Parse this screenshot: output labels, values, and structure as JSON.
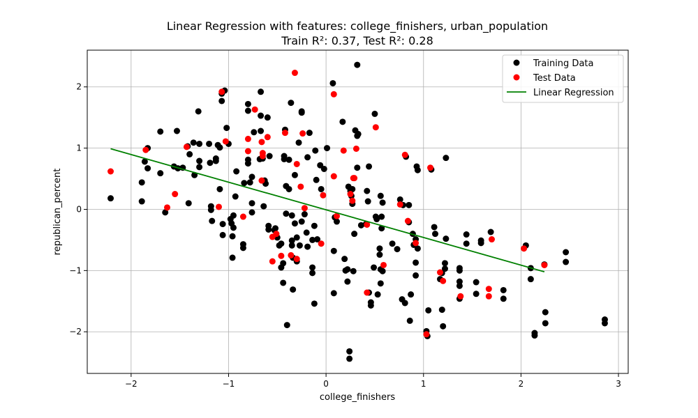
{
  "chart_data": {
    "type": "scatter",
    "title": "Linear Regression with features: college_finishers, urban_population",
    "subtitle": "Train R²: 0.37, Test R²: 0.28",
    "xlabel": "college_finishers",
    "ylabel": "republican_percent",
    "xlim": [
      -2.45,
      3.1
    ],
    "ylim": [
      -2.68,
      2.6
    ],
    "xticks": [
      -2,
      -1,
      0,
      1,
      2,
      3
    ],
    "yticks": [
      -2,
      -1,
      0,
      1,
      2
    ],
    "xtick_labels": [
      "−2",
      "−1",
      "0",
      "1",
      "2",
      "3"
    ],
    "ytick_labels": [
      "−2",
      "−1",
      "0",
      "1",
      "2"
    ],
    "grid": true,
    "legend_position": "top-right",
    "colors": {
      "training": "#000000",
      "test": "#ff0000",
      "line": "#008000",
      "grid": "#b0b0b0"
    },
    "series": [
      {
        "name": "Training Data",
        "kind": "scatter",
        "points": [
          [
            -2.21,
            0.18
          ],
          [
            -1.89,
            0.44
          ],
          [
            -1.89,
            0.13
          ],
          [
            -1.86,
            0.78
          ],
          [
            -1.83,
            0.67
          ],
          [
            -1.83,
            1.0
          ],
          [
            -1.7,
            1.27
          ],
          [
            -1.7,
            0.59
          ],
          [
            -1.65,
            -0.05
          ],
          [
            -1.56,
            0.7
          ],
          [
            -1.53,
            1.28
          ],
          [
            -1.52,
            0.67
          ],
          [
            -1.47,
            0.68
          ],
          [
            -1.42,
            1.03
          ],
          [
            -1.41,
            0.1
          ],
          [
            -1.4,
            0.9
          ],
          [
            -1.36,
            1.09
          ],
          [
            -1.35,
            0.56
          ],
          [
            -1.31,
            1.6
          ],
          [
            -1.3,
            0.69
          ],
          [
            -1.3,
            0.79
          ],
          [
            -1.3,
            1.07
          ],
          [
            -1.2,
            1.07
          ],
          [
            -1.19,
            0.76
          ],
          [
            -1.18,
            0.05
          ],
          [
            -1.18,
            -0.01
          ],
          [
            -1.17,
            -0.19
          ],
          [
            -1.13,
            0.83
          ],
          [
            -1.13,
            0.79
          ],
          [
            -1.11,
            1.05
          ],
          [
            -1.09,
            0.33
          ],
          [
            -1.09,
            1.01
          ],
          [
            -1.07,
            1.77
          ],
          [
            -1.07,
            1.89
          ],
          [
            -1.06,
            -0.24
          ],
          [
            -1.06,
            -0.42
          ],
          [
            -1.04,
            1.94
          ],
          [
            -1.02,
            1.33
          ],
          [
            -1.0,
            1.07
          ],
          [
            -0.98,
            -0.16
          ],
          [
            -0.97,
            -0.23
          ],
          [
            -0.96,
            -0.44
          ],
          [
            -0.96,
            -0.79
          ],
          [
            -0.95,
            -0.3
          ],
          [
            -0.95,
            -0.1
          ],
          [
            -0.93,
            0.21
          ],
          [
            -0.92,
            0.62
          ],
          [
            -0.85,
            -0.57
          ],
          [
            -0.85,
            -0.63
          ],
          [
            -0.84,
            0.43
          ],
          [
            -0.8,
            1.72
          ],
          [
            -0.8,
            1.61
          ],
          [
            -0.8,
            0.75
          ],
          [
            -0.8,
            0.81
          ],
          [
            -0.78,
            0.44
          ],
          [
            -0.76,
            0.1
          ],
          [
            -0.76,
            -0.05
          ],
          [
            -0.76,
            0.53
          ],
          [
            -0.74,
            1.26
          ],
          [
            -0.68,
            0.82
          ],
          [
            -0.67,
            1.53
          ],
          [
            -0.67,
            1.28
          ],
          [
            -0.67,
            1.92
          ],
          [
            -0.65,
            0.83
          ],
          [
            -0.64,
            0.05
          ],
          [
            -0.63,
            0.47
          ],
          [
            -0.62,
            0.42
          ],
          [
            -0.6,
            1.5
          ],
          [
            -0.59,
            -0.27
          ],
          [
            -0.59,
            -0.33
          ],
          [
            -0.58,
            0.87
          ],
          [
            -0.53,
            -0.34
          ],
          [
            -0.52,
            -0.31
          ],
          [
            -0.5,
            -0.46
          ],
          [
            -0.48,
            -0.59
          ],
          [
            -0.46,
            -0.56
          ],
          [
            -0.46,
            -0.95
          ],
          [
            -0.44,
            -0.88
          ],
          [
            -0.44,
            -1.2
          ],
          [
            -0.43,
            0.87
          ],
          [
            -0.43,
            0.82
          ],
          [
            -0.42,
            1.3
          ],
          [
            -0.41,
            -0.07
          ],
          [
            -0.41,
            0.38
          ],
          [
            -0.4,
            -1.89
          ],
          [
            -0.38,
            0.81
          ],
          [
            -0.38,
            0.33
          ],
          [
            -0.36,
            1.74
          ],
          [
            -0.35,
            -0.51
          ],
          [
            -0.35,
            -0.59
          ],
          [
            -0.35,
            -0.1
          ],
          [
            -0.34,
            -1.31
          ],
          [
            -0.34,
            -0.79
          ],
          [
            -0.32,
            -0.23
          ],
          [
            -0.32,
            0.56
          ],
          [
            -0.3,
            -0.46
          ],
          [
            -0.3,
            -0.85
          ],
          [
            -0.28,
            1.09
          ],
          [
            -0.27,
            -0.59
          ],
          [
            -0.25,
            1.6
          ],
          [
            -0.25,
            1.58
          ],
          [
            -0.25,
            -0.2
          ],
          [
            -0.22,
            -0.08
          ],
          [
            -0.2,
            -0.38
          ],
          [
            -0.19,
            -0.61
          ],
          [
            -0.19,
            0.85
          ],
          [
            -0.17,
            1.25
          ],
          [
            -0.14,
            -0.5
          ],
          [
            -0.14,
            -0.95
          ],
          [
            -0.14,
            -1.04
          ],
          [
            -0.12,
            -0.27
          ],
          [
            -0.12,
            -1.54
          ],
          [
            -0.11,
            0.96
          ],
          [
            -0.1,
            0.48
          ],
          [
            -0.09,
            -0.49
          ],
          [
            -0.06,
            0.72
          ],
          [
            -0.05,
            0.33
          ],
          [
            -0.02,
            0.66
          ],
          [
            0.01,
            1.0
          ],
          [
            0.07,
            2.06
          ],
          [
            0.08,
            -0.68
          ],
          [
            0.08,
            -1.37
          ],
          [
            0.09,
            -0.13
          ],
          [
            0.11,
            -0.2
          ],
          [
            0.17,
            1.43
          ],
          [
            0.19,
            -0.81
          ],
          [
            0.2,
            -1.0
          ],
          [
            0.22,
            -1.18
          ],
          [
            0.22,
            -0.98
          ],
          [
            0.23,
            0.37
          ],
          [
            0.24,
            -2.32
          ],
          [
            0.24,
            -2.44
          ],
          [
            0.25,
            0.3
          ],
          [
            0.26,
            0.22
          ],
          [
            0.27,
            0.33
          ],
          [
            0.27,
            0.09
          ],
          [
            0.28,
            -1.01
          ],
          [
            0.29,
            -0.4
          ],
          [
            0.3,
            1.29
          ],
          [
            0.32,
            1.2
          ],
          [
            0.32,
            0.68
          ],
          [
            0.32,
            2.36
          ],
          [
            0.33,
            1.23
          ],
          [
            0.36,
            -0.26
          ],
          [
            0.41,
            -0.24
          ],
          [
            0.42,
            0.3
          ],
          [
            0.43,
            0.13
          ],
          [
            0.44,
            -1.36
          ],
          [
            0.44,
            0.7
          ],
          [
            0.46,
            -1.52
          ],
          [
            0.46,
            -1.57
          ],
          [
            0.49,
            -0.95
          ],
          [
            0.5,
            1.56
          ],
          [
            0.51,
            -0.12
          ],
          [
            0.52,
            -0.16
          ],
          [
            0.53,
            -1.39
          ],
          [
            0.55,
            -0.64
          ],
          [
            0.55,
            -0.74
          ],
          [
            0.56,
            -1.21
          ],
          [
            0.56,
            0.22
          ],
          [
            0.56,
            -0.98
          ],
          [
            0.57,
            -0.12
          ],
          [
            0.57,
            -0.31
          ],
          [
            0.58,
            0.11
          ],
          [
            0.58,
            -1.01
          ],
          [
            0.68,
            -0.56
          ],
          [
            0.73,
            -0.65
          ],
          [
            0.76,
            0.16
          ],
          [
            0.78,
            -1.47
          ],
          [
            0.79,
            0.07
          ],
          [
            0.81,
            -1.53
          ],
          [
            0.82,
            0.86
          ],
          [
            0.85,
            -0.21
          ],
          [
            0.85,
            0.07
          ],
          [
            0.86,
            -1.82
          ],
          [
            0.87,
            -1.39
          ],
          [
            0.89,
            -0.4
          ],
          [
            0.9,
            -0.58
          ],
          [
            0.92,
            -0.49
          ],
          [
            0.92,
            -0.87
          ],
          [
            0.92,
            -1.08
          ],
          [
            0.93,
            0.7
          ],
          [
            0.94,
            -0.64
          ],
          [
            0.94,
            0.64
          ],
          [
            1.03,
            -1.99
          ],
          [
            1.04,
            -2.07
          ],
          [
            1.05,
            -1.65
          ],
          [
            1.08,
            0.65
          ],
          [
            1.11,
            -0.29
          ],
          [
            1.12,
            -0.4
          ],
          [
            1.17,
            -1.14
          ],
          [
            1.19,
            -1.04
          ],
          [
            1.19,
            -1.64
          ],
          [
            1.2,
            -1.91
          ],
          [
            1.22,
            -0.88
          ],
          [
            1.22,
            -0.97
          ],
          [
            1.23,
            -0.48
          ],
          [
            1.23,
            0.84
          ],
          [
            1.37,
            -0.96
          ],
          [
            1.37,
            -1.0
          ],
          [
            1.37,
            -1.18
          ],
          [
            1.37,
            -1.46
          ],
          [
            1.37,
            -1.25
          ],
          [
            1.44,
            -0.56
          ],
          [
            1.44,
            -0.41
          ],
          [
            1.54,
            -1.19
          ],
          [
            1.54,
            -1.38
          ],
          [
            1.59,
            -0.51
          ],
          [
            1.59,
            -0.55
          ],
          [
            1.69,
            -0.37
          ],
          [
            1.82,
            -1.32
          ],
          [
            1.82,
            -1.46
          ],
          [
            2.05,
            -0.59
          ],
          [
            2.1,
            -0.96
          ],
          [
            2.1,
            -1.14
          ],
          [
            2.14,
            -2.02
          ],
          [
            2.14,
            -2.06
          ],
          [
            2.24,
            -0.9
          ],
          [
            2.25,
            -1.68
          ],
          [
            2.25,
            -1.86
          ],
          [
            2.46,
            -0.7
          ],
          [
            2.46,
            -0.86
          ],
          [
            2.86,
            -1.8
          ],
          [
            2.86,
            -1.86
          ]
        ]
      },
      {
        "name": "Test Data",
        "kind": "scatter",
        "points": [
          [
            -2.21,
            0.62
          ],
          [
            -1.85,
            0.97
          ],
          [
            -1.63,
            0.03
          ],
          [
            -1.55,
            0.25
          ],
          [
            -1.43,
            1.02
          ],
          [
            -1.1,
            0.04
          ],
          [
            -1.07,
            1.92
          ],
          [
            -1.03,
            1.11
          ],
          [
            -0.85,
            -0.12
          ],
          [
            -0.8,
            1.15
          ],
          [
            -0.8,
            0.95
          ],
          [
            -0.73,
            1.63
          ],
          [
            -0.66,
            1.1
          ],
          [
            -0.66,
            0.47
          ],
          [
            -0.65,
            0.92
          ],
          [
            -0.65,
            0.87
          ],
          [
            -0.6,
            1.18
          ],
          [
            -0.55,
            -0.45
          ],
          [
            -0.55,
            -0.85
          ],
          [
            -0.51,
            -0.4
          ],
          [
            -0.46,
            -0.76
          ],
          [
            -0.42,
            1.25
          ],
          [
            -0.36,
            -0.75
          ],
          [
            -0.32,
            2.23
          ],
          [
            -0.3,
            0.74
          ],
          [
            -0.3,
            -0.81
          ],
          [
            -0.26,
            0.37
          ],
          [
            -0.24,
            1.24
          ],
          [
            -0.22,
            0.02
          ],
          [
            -0.05,
            -0.56
          ],
          [
            -0.03,
            0.23
          ],
          [
            0.08,
            0.54
          ],
          [
            0.08,
            1.88
          ],
          [
            0.11,
            -0.11
          ],
          [
            0.18,
            0.96
          ],
          [
            0.25,
            0.25
          ],
          [
            0.27,
            0.14
          ],
          [
            0.28,
            0.51
          ],
          [
            0.29,
            0.51
          ],
          [
            0.31,
            0.99
          ],
          [
            0.42,
            -1.36
          ],
          [
            0.42,
            -0.25
          ],
          [
            0.51,
            1.34
          ],
          [
            0.59,
            -0.91
          ],
          [
            0.76,
            0.08
          ],
          [
            0.81,
            0.89
          ],
          [
            0.84,
            -0.19
          ],
          [
            0.92,
            -0.55
          ],
          [
            1.03,
            -2.04
          ],
          [
            1.07,
            0.68
          ],
          [
            1.17,
            -1.03
          ],
          [
            1.2,
            -1.17
          ],
          [
            1.38,
            -1.42
          ],
          [
            1.67,
            -1.3
          ],
          [
            1.67,
            -1.42
          ],
          [
            1.7,
            -0.49
          ],
          [
            2.03,
            -0.64
          ],
          [
            2.24,
            -0.91
          ]
        ]
      },
      {
        "name": "Linear Regression",
        "kind": "line",
        "points": [
          [
            -2.21,
            0.99
          ],
          [
            2.24,
            -1.02
          ]
        ]
      }
    ]
  }
}
